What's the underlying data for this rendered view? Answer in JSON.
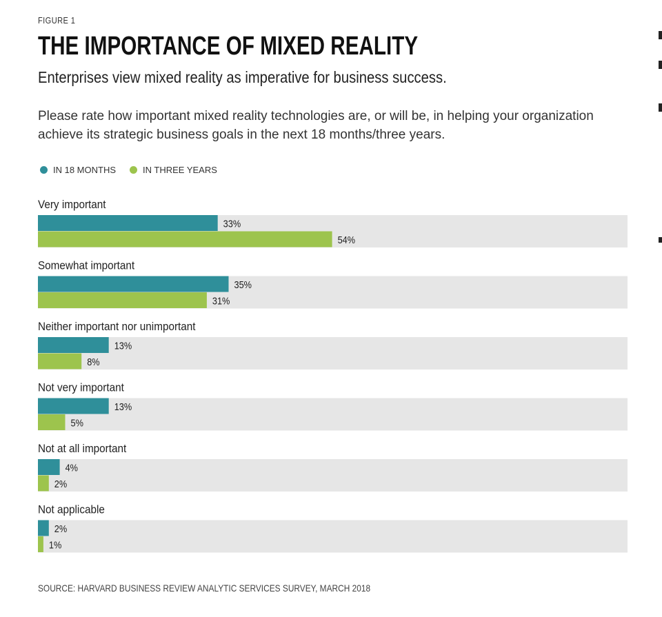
{
  "figure_label": "FIGURE 1",
  "title": "THE IMPORTANCE OF MIXED REALITY",
  "subtitle": "Enterprises view mixed reality as imperative for business success.",
  "question": "Please rate how important mixed reality technologies are, or will be, in helping your organization achieve its strategic business goals in the next 18 months/three years.",
  "source": "SOURCE: HARVARD BUSINESS REVIEW ANALYTIC SERVICES SURVEY, MARCH 2018",
  "colors": {
    "series_18_months": "#2f8f9a",
    "series_three_years": "#9dc44d",
    "track": "#e6e6e6"
  },
  "chart_data": {
    "type": "bar",
    "orientation": "horizontal",
    "categories": [
      "Very important",
      "Somewhat important",
      "Neither important nor unimportant",
      "Not very important",
      "Not at all important",
      "Not applicable"
    ],
    "series": [
      {
        "name": "IN 18 MONTHS",
        "values": [
          33,
          35,
          13,
          13,
          4,
          2
        ],
        "labels": [
          "33%",
          "35%",
          "13%",
          "13%",
          "4%",
          "2%"
        ]
      },
      {
        "name": "IN THREE YEARS",
        "values": [
          54,
          31,
          8,
          5,
          2,
          1
        ],
        "labels": [
          "54%",
          "31%",
          "8%",
          "5%",
          "2%",
          "1%"
        ]
      }
    ],
    "xlim": [
      0,
      100
    ],
    "legend": "top-left",
    "grid": false
  }
}
